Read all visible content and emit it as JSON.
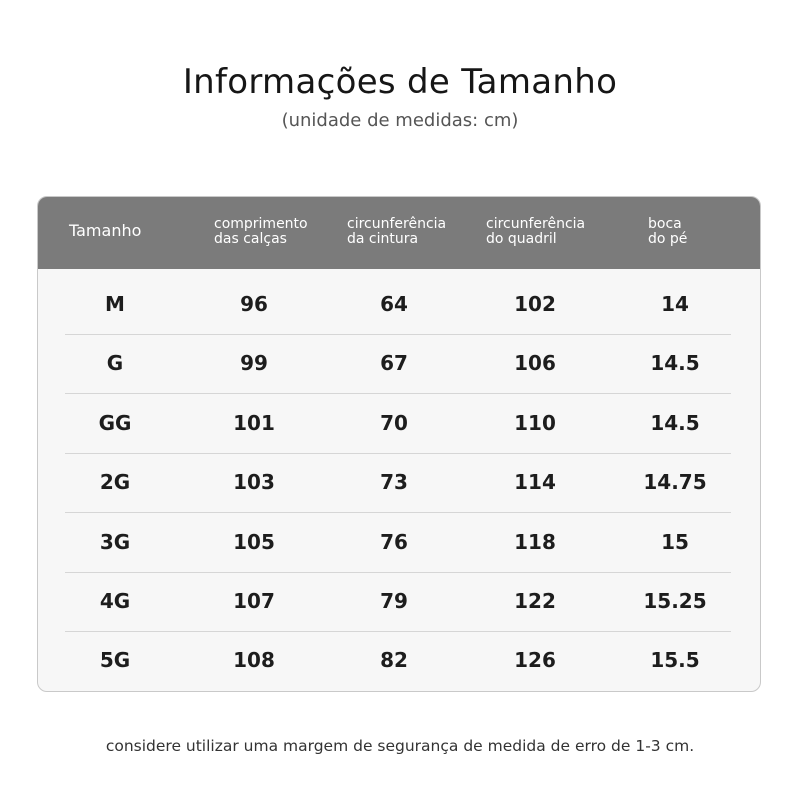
{
  "header": {
    "title": "Informações de Tamanho",
    "subtitle": "(unidade de medidas: cm)"
  },
  "table": {
    "columns": [
      {
        "line1": "Tamanho",
        "line2": ""
      },
      {
        "line1": "comprimento",
        "line2": "das calças"
      },
      {
        "line1": "circunferência",
        "line2": "da cintura"
      },
      {
        "line1": "circunferência",
        "line2": "do quadril"
      },
      {
        "line1": "boca",
        "line2": "do pé"
      }
    ],
    "rows": [
      [
        "M",
        "96",
        "64",
        "102",
        "14"
      ],
      [
        "G",
        "99",
        "67",
        "106",
        "14.5"
      ],
      [
        "GG",
        "101",
        "70",
        "110",
        "14.5"
      ],
      [
        "2G",
        "103",
        "73",
        "114",
        "14.75"
      ],
      [
        "3G",
        "105",
        "76",
        "118",
        "15"
      ],
      [
        "4G",
        "107",
        "79",
        "122",
        "15.25"
      ],
      [
        "5G",
        "108",
        "82",
        "126",
        "15.5"
      ]
    ]
  },
  "footer": {
    "note": "considere utilizar uma margem de segurança de medida de erro de 1-3 cm."
  },
  "colors": {
    "header_bg": "#7b7b7b",
    "table_bg": "#f7f7f7",
    "text": "#1a1a1a"
  }
}
